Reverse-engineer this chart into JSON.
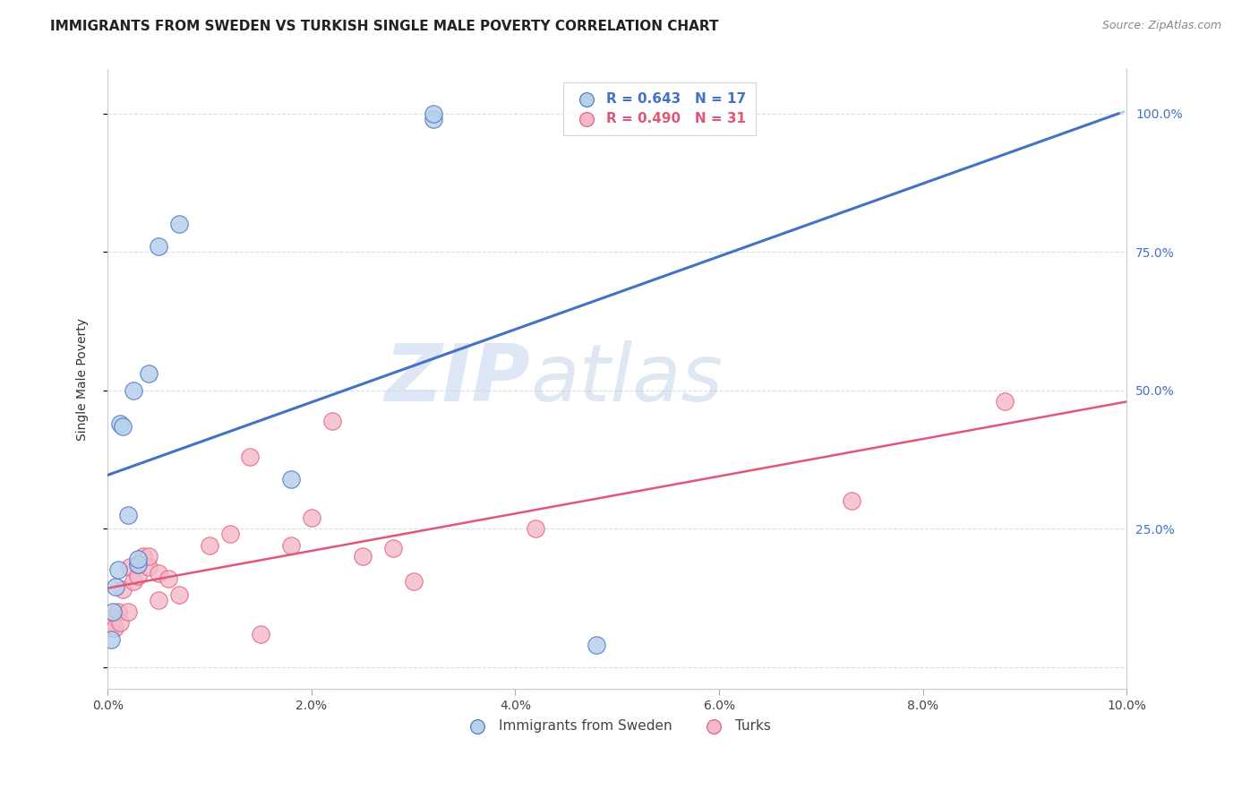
{
  "title": "IMMIGRANTS FROM SWEDEN VS TURKISH SINGLE MALE POVERTY CORRELATION CHART",
  "source": "Source: ZipAtlas.com",
  "ylabel": "Single Male Poverty",
  "yticks": [
    0.0,
    0.25,
    0.5,
    0.75,
    1.0
  ],
  "ytick_labels_right": [
    "",
    "25.0%",
    "50.0%",
    "75.0%",
    "100.0%"
  ],
  "legend_sweden_r": "R = 0.643",
  "legend_sweden_n": "N = 17",
  "legend_turks_r": "R = 0.490",
  "legend_turks_n": "N = 31",
  "legend_label_sweden": "Immigrants from Sweden",
  "legend_label_turks": "Turks",
  "sweden_color": "#b8d0ea",
  "turks_color": "#f5b8c8",
  "sweden_edge_color": "#4472c4",
  "turks_edge_color": "#e05878",
  "sweden_line_color": "#4472c4",
  "turks_line_color": "#e05878",
  "dash_color": "#9ab8d8",
  "background_color": "#ffffff",
  "grid_color": "#d8dde8",
  "spine_color": "#cccccc",
  "tick_color": "#aaaaaa",
  "right_tick_color": "#4472c4",
  "title_color": "#222222",
  "source_color": "#888888",
  "watermark_zip_color": "#c8d8ef",
  "watermark_atlas_color": "#b8cce4",
  "xlim": [
    0.0,
    0.1
  ],
  "ylim": [
    -0.04,
    1.08
  ],
  "xticks": [
    0.0,
    0.02,
    0.04,
    0.06,
    0.08,
    0.1
  ],
  "xtick_labels": [
    "0.0%",
    "2.0%",
    "4.0%",
    "6.0%",
    "8.0%",
    "10.0%"
  ],
  "sweden_x": [
    0.0003,
    0.0005,
    0.0008,
    0.001,
    0.0012,
    0.0015,
    0.002,
    0.0025,
    0.003,
    0.003,
    0.004,
    0.005,
    0.007,
    0.018,
    0.032,
    0.032,
    0.048
  ],
  "sweden_y": [
    0.05,
    0.1,
    0.145,
    0.175,
    0.44,
    0.435,
    0.275,
    0.5,
    0.185,
    0.195,
    0.53,
    0.76,
    0.8,
    0.34,
    0.99,
    1.0,
    0.04
  ],
  "turks_x": [
    0.0003,
    0.0005,
    0.0007,
    0.001,
    0.0012,
    0.0015,
    0.002,
    0.0022,
    0.0025,
    0.003,
    0.003,
    0.0035,
    0.004,
    0.004,
    0.005,
    0.005,
    0.006,
    0.007,
    0.01,
    0.012,
    0.014,
    0.015,
    0.018,
    0.02,
    0.022,
    0.025,
    0.028,
    0.03,
    0.042,
    0.073,
    0.088
  ],
  "turks_y": [
    0.07,
    0.09,
    0.07,
    0.1,
    0.08,
    0.14,
    0.1,
    0.18,
    0.155,
    0.165,
    0.185,
    0.2,
    0.18,
    0.2,
    0.17,
    0.12,
    0.16,
    0.13,
    0.22,
    0.24,
    0.38,
    0.06,
    0.22,
    0.27,
    0.445,
    0.2,
    0.215,
    0.155,
    0.25,
    0.3,
    0.48
  ],
  "point_size": 130,
  "title_fontsize": 11,
  "label_fontsize": 10,
  "ylabel_fontsize": 10,
  "legend_fontsize": 11
}
